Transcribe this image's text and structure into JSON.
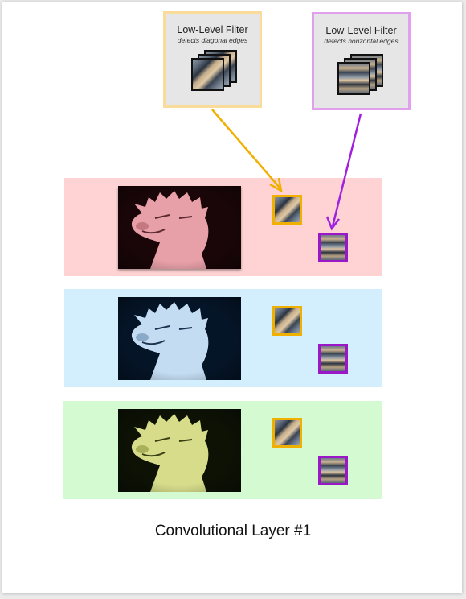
{
  "filters": [
    {
      "title": "Low-Level Filter",
      "subtitle": "detects diagonal edges",
      "color": "#f0b000",
      "box_border": "#fadc9a",
      "icon": "diagonal-edge-filter-icon"
    },
    {
      "title": "Low-Level Filter",
      "subtitle": "detects horizontal edges",
      "color": "#9a18c8",
      "box_border": "#e0a0ee",
      "icon": "horizontal-edge-filter-icon"
    }
  ],
  "channels": [
    {
      "name": "red",
      "band_color": "#ffd3d3"
    },
    {
      "name": "blue",
      "band_color": "#d3eefc"
    },
    {
      "name": "green",
      "band_color": "#d3fad1"
    }
  ],
  "caption": "Convolutional Layer #1"
}
